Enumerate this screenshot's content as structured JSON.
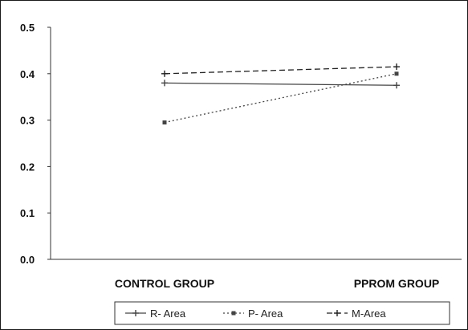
{
  "chart_data": {
    "type": "line",
    "categories": [
      "CONTROL GROUP",
      "PPROM GROUP"
    ],
    "series": [
      {
        "name": "R- Area",
        "values": [
          0.38,
          0.375
        ],
        "marker": "plus",
        "dash": "solid",
        "color": "#444444"
      },
      {
        "name": "P- Area",
        "values": [
          0.295,
          0.4
        ],
        "marker": "square",
        "dash": "dotted",
        "color": "#444444"
      },
      {
        "name": "M-Area",
        "values": [
          0.4,
          0.415
        ],
        "marker": "plus",
        "dash": "dashed",
        "color": "#222222"
      }
    ],
    "y_ticks": [
      "0.0",
      "0.1",
      "0.2",
      "0.3",
      "0.4",
      "0.5"
    ],
    "ylim": [
      0,
      0.5
    ],
    "title": "",
    "xlabel": "",
    "ylabel": "",
    "grid": false,
    "legend_position": "bottom"
  }
}
